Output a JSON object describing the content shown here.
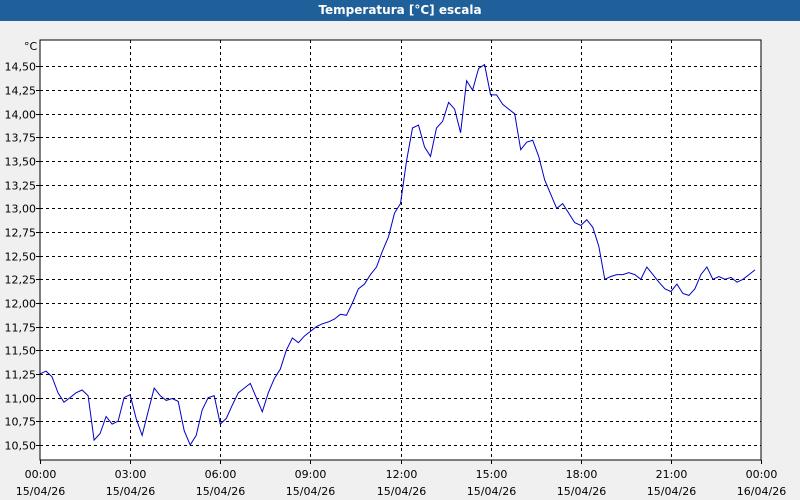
{
  "title": "Temperatura [°C] escala",
  "chart_data": {
    "type": "line",
    "title": "Temperatura [°C] escala",
    "ylabel": "°C",
    "ylim": [
      10.34,
      14.78
    ],
    "y_ticks": [
      "10,50",
      "10,75",
      "11,00",
      "11,25",
      "11,50",
      "11,75",
      "12,00",
      "12,25",
      "12,50",
      "12,75",
      "13,00",
      "13,25",
      "13,50",
      "13,75",
      "14,00",
      "14,25",
      "14,50"
    ],
    "x_ticks": [
      {
        "time": "00:00",
        "date": "15/04/26"
      },
      {
        "time": "03:00",
        "date": "15/04/26"
      },
      {
        "time": "06:00",
        "date": "15/04/26"
      },
      {
        "time": "09:00",
        "date": "15/04/26"
      },
      {
        "time": "12:00",
        "date": "15/04/26"
      },
      {
        "time": "15:00",
        "date": "15/04/26"
      },
      {
        "time": "18:00",
        "date": "15/04/26"
      },
      {
        "time": "21:00",
        "date": "15/04/26"
      },
      {
        "time": "00:00",
        "date": "16/04/26"
      }
    ],
    "grid": true,
    "line_color": "#0000c8",
    "series": [
      {
        "x": [
          0,
          0.2,
          0.4,
          0.6,
          0.8,
          1.0,
          1.2,
          1.4,
          1.6,
          1.8,
          2.0,
          2.2,
          2.4,
          2.6,
          2.8,
          3.0,
          3.2,
          3.4,
          3.6,
          3.8,
          4.0,
          4.2,
          4.4,
          4.6,
          4.8,
          5.0,
          5.2,
          5.4,
          5.6,
          5.8,
          6.0,
          6.2,
          6.4,
          6.6,
          6.8,
          7.0,
          7.2,
          7.4,
          7.6,
          7.8,
          8.0,
          8.2,
          8.4,
          8.6,
          8.8,
          9.0,
          9.2,
          9.4,
          9.6,
          9.8,
          10.0,
          10.2,
          10.4,
          10.6,
          10.8,
          11.0,
          11.2,
          11.4,
          11.6,
          11.8,
          12.0,
          12.2,
          12.4,
          12.6,
          12.8,
          13.0,
          13.2,
          13.4,
          13.6,
          13.8,
          14.0,
          14.2,
          14.4,
          14.6,
          14.8,
          15.0,
          15.2,
          15.4,
          15.6,
          15.8,
          16.0,
          16.2,
          16.4,
          16.6,
          16.8,
          17.0,
          17.2,
          17.4,
          17.6,
          17.8,
          18.0,
          18.2,
          18.4,
          18.6,
          18.8,
          19.0,
          19.2,
          19.4,
          19.6,
          19.8,
          20.0,
          20.2,
          20.4,
          20.6,
          20.8,
          21.0,
          21.2,
          21.4,
          21.6,
          21.8,
          22.0,
          22.2,
          22.4,
          22.6,
          22.8,
          23.0,
          23.2,
          23.4,
          23.6,
          23.8
        ],
        "values": [
          11.25,
          11.28,
          11.22,
          11.05,
          10.95,
          11.0,
          11.05,
          11.08,
          11.02,
          10.55,
          10.62,
          10.8,
          10.72,
          10.75,
          11.0,
          11.03,
          10.78,
          10.6,
          10.85,
          11.1,
          11.02,
          10.97,
          10.99,
          10.96,
          10.65,
          10.5,
          10.6,
          10.87,
          11.0,
          11.02,
          10.72,
          10.78,
          10.92,
          11.05,
          11.1,
          11.15,
          11.0,
          10.85,
          11.05,
          11.2,
          11.3,
          11.5,
          11.63,
          11.58,
          11.65,
          11.7,
          11.75,
          11.78,
          11.8,
          11.83,
          11.88,
          11.87,
          12.0,
          12.15,
          12.2,
          12.3,
          12.38,
          12.55,
          12.7,
          12.95,
          13.05,
          13.5,
          13.85,
          13.88,
          13.65,
          13.55,
          13.85,
          13.92,
          14.12,
          14.05,
          13.8,
          14.35,
          14.25,
          14.48,
          14.52,
          14.2,
          14.2,
          14.1,
          14.05,
          14.0,
          13.62,
          13.7,
          13.72,
          13.55,
          13.3,
          13.15,
          13.0,
          13.05,
          12.95,
          12.85,
          12.82,
          12.88,
          12.8,
          12.6,
          12.25,
          12.28,
          12.3,
          12.3,
          12.32,
          12.3,
          12.25,
          12.38,
          12.3,
          12.22,
          12.15,
          12.12,
          12.2,
          12.1,
          12.08,
          12.15,
          12.3,
          12.38,
          12.25,
          12.28,
          12.25,
          12.27,
          12.22,
          12.25,
          12.3,
          12.35
        ]
      }
    ]
  }
}
